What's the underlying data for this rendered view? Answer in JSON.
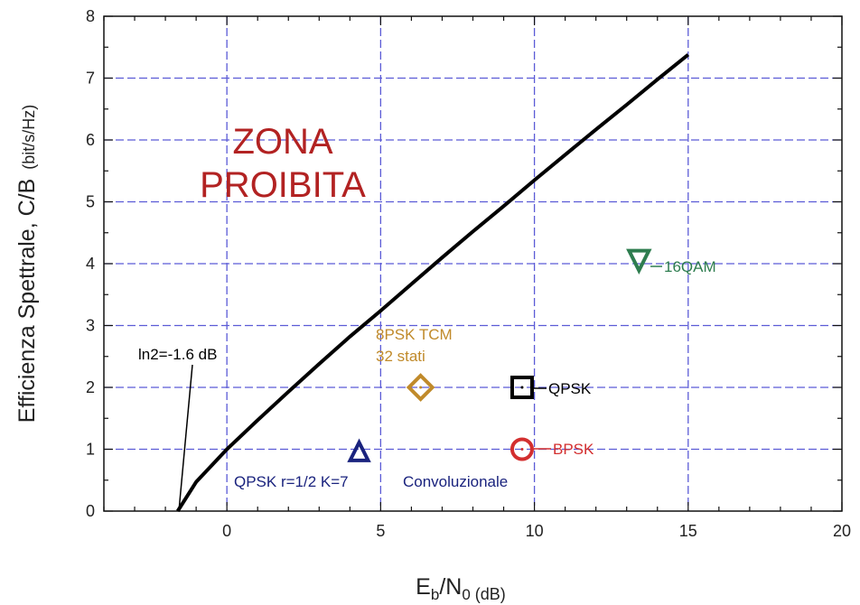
{
  "chart_data": {
    "type": "line",
    "title": "",
    "xlabel": {
      "main": "E",
      "sub1": "b",
      "mid": "/N",
      "sub2": "0",
      "unit": " (dB)"
    },
    "ylabel": "Efficienza Spettrale, C/B",
    "ylabel_unit": "(bit/s/Hz)",
    "xlim": [
      -4,
      20
    ],
    "ylim": [
      0,
      8
    ],
    "xticks": [
      0,
      5,
      10,
      15,
      20
    ],
    "yticks": [
      0,
      1,
      2,
      3,
      4,
      5,
      6,
      7,
      8
    ],
    "x_minor_step": 1,
    "y_minor_step": 0.5,
    "grid": true,
    "grid_color": "#5b5bd6",
    "curve_color": "#000000",
    "series": [
      {
        "x": [
          -1.6,
          -1.0,
          0.0,
          1.0,
          2.0,
          3.0,
          4.0,
          5.0,
          6.0,
          7.0,
          8.0,
          9.0,
          10.0,
          11.0,
          12.0,
          13.0,
          14.0,
          15.0
        ],
        "y": [
          0.0,
          0.47,
          1.0,
          1.47,
          1.93,
          2.38,
          2.82,
          3.24,
          3.67,
          4.1,
          4.52,
          4.93,
          5.35,
          5.76,
          6.17,
          6.57,
          6.98,
          7.38
        ]
      }
    ],
    "points": [
      {
        "label": "16QAM",
        "x": 13.4,
        "y": 4.05,
        "marker": "triangle-down",
        "color": "#2e7d4f"
      },
      {
        "label": "QPSK",
        "x": 9.6,
        "y": 2.0,
        "marker": "square",
        "color": "#000000"
      },
      {
        "label": "BPSK",
        "x": 9.6,
        "y": 1.0,
        "marker": "circle",
        "color": "#d32f2f"
      },
      {
        "label": "8PSK TCM",
        "label2": "32 stati",
        "x": 6.3,
        "y": 2.0,
        "marker": "diamond",
        "color": "#c08a2a"
      },
      {
        "label": "QPSK r=1/2 K=7",
        "label2": "Convoluzionale",
        "x": 4.3,
        "y": 0.95,
        "marker": "triangle-up",
        "color": "#1a237e"
      }
    ],
    "annotations": [
      {
        "text": "ZONA",
        "color": "#b22222"
      },
      {
        "text": "PROIBITA",
        "color": "#b22222"
      },
      {
        "text": "ln2=-1.6 dB",
        "x": -1.6,
        "y": 0,
        "color": "#000000"
      }
    ]
  }
}
